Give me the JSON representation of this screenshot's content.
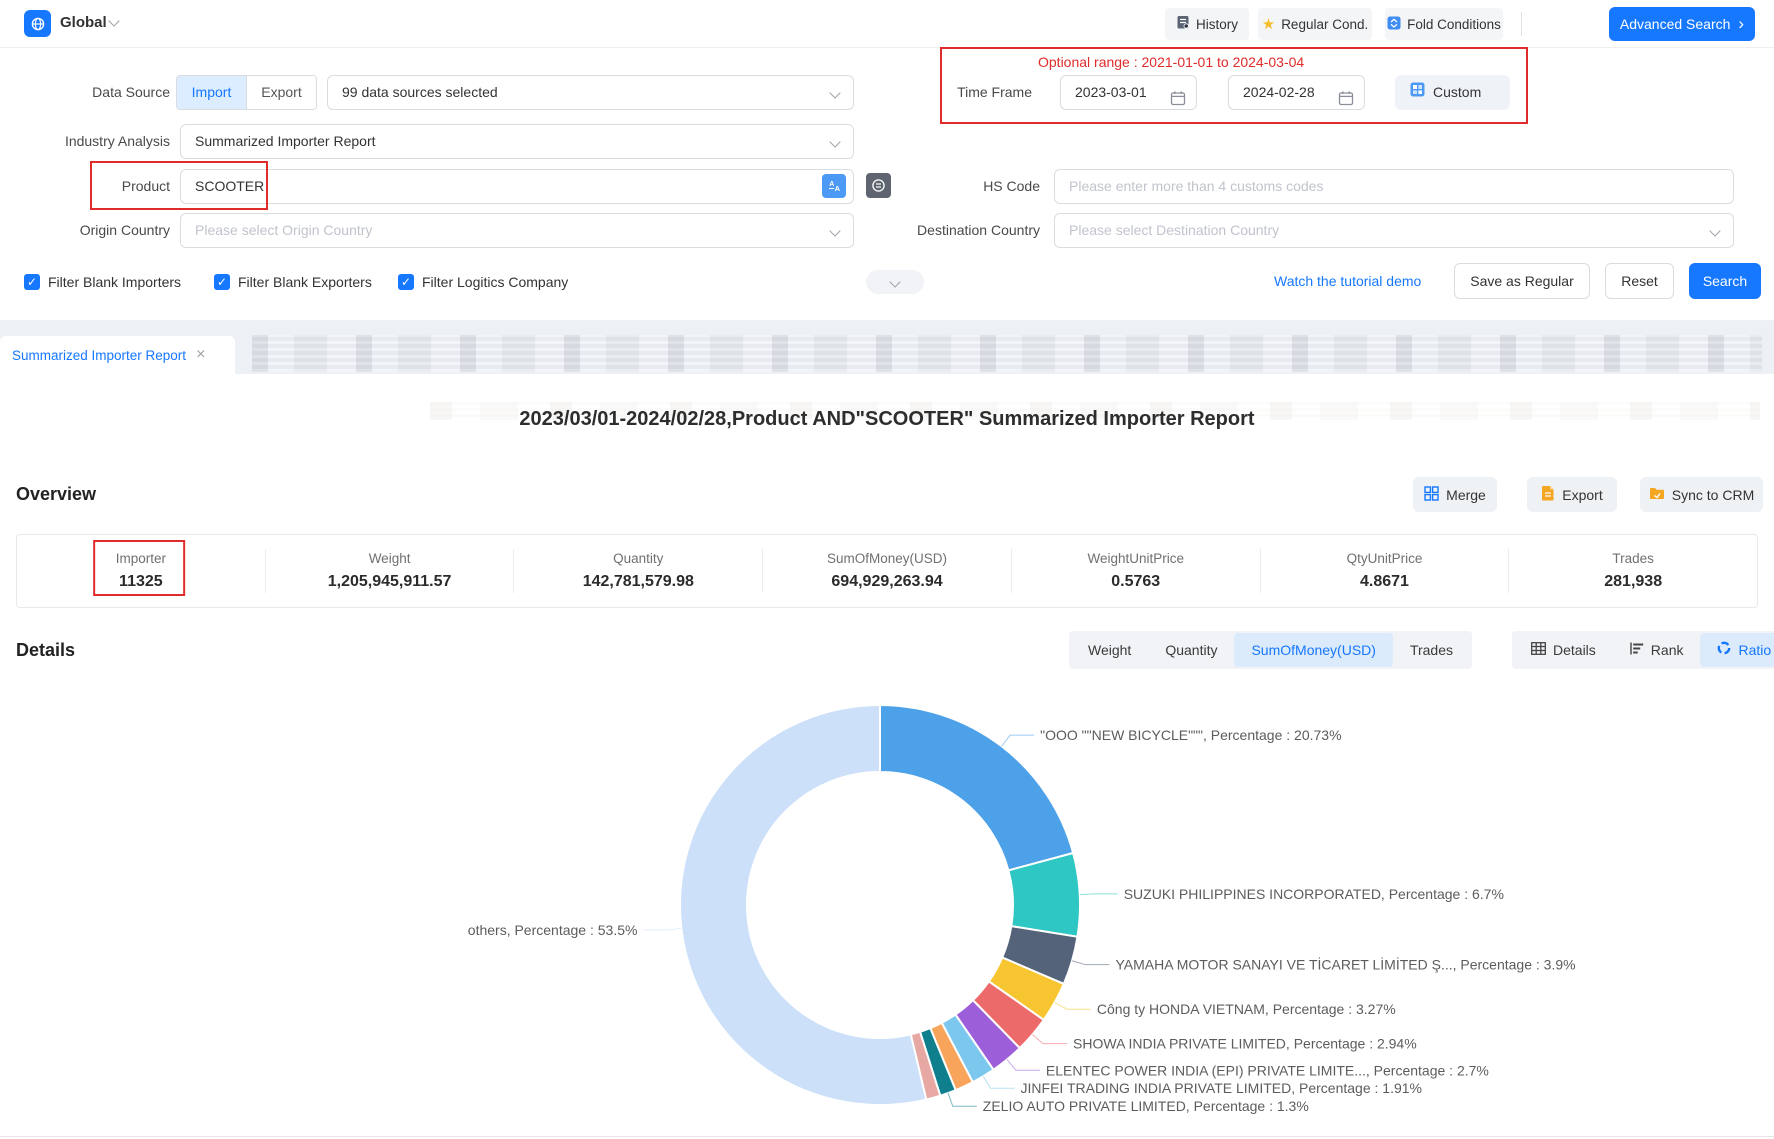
{
  "colors": {
    "accent": "#1677FF",
    "annotation_red": "#E02B2B",
    "star_yellow": "#F6BE2C",
    "doc_orange": "#F5A623"
  },
  "topbar": {
    "region_label": "Global",
    "history_label": "History",
    "regular_label": "Regular Cond.",
    "fold_label": "Fold Conditions",
    "advanced_label": "Advanced Search",
    "advanced_chevron": "›"
  },
  "form": {
    "data_source_label": "Data Source",
    "import_label": "Import",
    "export_label": "Export",
    "sources_value": "99 data sources selected",
    "optional_range": "Optional range : 2021-01-01 to 2024-03-04",
    "time_frame_label": "Time Frame",
    "date_from": "2023-03-01",
    "date_to": "2024-02-28",
    "custom_label": "Custom",
    "industry_label": "Industry Analysis",
    "industry_value": "Summarized Importer Report",
    "product_label": "Product",
    "product_value": "SCOOTER",
    "hs_label": "HS Code",
    "hs_placeholder": "Please enter more than 4 customs codes",
    "origin_label": "Origin Country",
    "origin_placeholder": "Please select Origin Country",
    "dest_label": "Destination Country",
    "dest_placeholder": "Please select Destination Country",
    "checkbox1": "Filter Blank Importers",
    "checkbox2": "Filter Blank Exporters",
    "checkbox3": "Filter Logitics Company",
    "check_glyph": "✓",
    "tutorial_link": "Watch the tutorial demo",
    "save_regular_label": "Save as Regular",
    "reset_label": "Reset",
    "search_label": "Search"
  },
  "tab": {
    "title": "Summarized Importer Report",
    "close_glyph": "×"
  },
  "report": {
    "title": "2023/03/01-2024/02/28,Product AND\"SCOOTER\" Summarized Importer Report",
    "overview_heading": "Overview",
    "merge_label": "Merge",
    "export_label": "Export",
    "sync_label": "Sync to CRM",
    "stats": [
      {
        "label": "Importer",
        "value": "11325"
      },
      {
        "label": "Weight",
        "value": "1,205,945,911.57"
      },
      {
        "label": "Quantity",
        "value": "142,781,579.98"
      },
      {
        "label": "SumOfMoney(USD)",
        "value": "694,929,263.94"
      },
      {
        "label": "WeightUnitPrice",
        "value": "0.5763"
      },
      {
        "label": "QtyUnitPrice",
        "value": "4.8671"
      },
      {
        "label": "Trades",
        "value": "281,938"
      }
    ],
    "details_heading": "Details",
    "metric_toggles": [
      "Weight",
      "Quantity",
      "SumOfMoney(USD)",
      "Trades"
    ],
    "metric_selected": "SumOfMoney(USD)",
    "view_toggles": [
      "Details",
      "Rank",
      "Ratio"
    ],
    "view_selected": "Ratio"
  },
  "chart_data": {
    "type": "pie",
    "subtype": "donut",
    "title": "Importer share of SumOfMoney(USD)",
    "legend_position": "none",
    "label_word": "Percentage",
    "slices": [
      {
        "name": "\"OOO \"\"NEW BICYCLE\"\"\"",
        "value": 20.73,
        "color": "#4DA1E8",
        "labeled": true
      },
      {
        "name": "SUZUKI PHILIPPINES INCORPORATED",
        "value": 6.7,
        "color": "#2EC7C3",
        "labeled": true
      },
      {
        "name": "YAMAHA MOTOR SANAYI VE TİCARET LİMİTED Ş...",
        "value": 3.9,
        "color": "#546379",
        "labeled": true
      },
      {
        "name": "Công ty HONDA VIETNAM",
        "value": 3.27,
        "color": "#F7C530",
        "labeled": true
      },
      {
        "name": "SHOWA INDIA PRIVATE LIMITED",
        "value": 2.94,
        "color": "#EC6A6A",
        "labeled": true
      },
      {
        "name": "ELENTEC POWER INDIA (EPI) PRIVATE LIMITE...",
        "value": 2.7,
        "color": "#9C5FD9",
        "labeled": true
      },
      {
        "name": "JINFEI TRADING INDIA PRIVATE LIMITED",
        "value": 1.91,
        "color": "#7CC7ED",
        "labeled": true
      },
      {
        "name": "",
        "value": 1.5,
        "color": "#F8A45B",
        "labeled": false
      },
      {
        "name": "ZELIO AUTO PRIVATE LIMITED",
        "value": 1.3,
        "color": "#0F7F8D",
        "labeled": true
      },
      {
        "name": "",
        "value": 1.15,
        "color": "#E7A7A3",
        "labeled": false
      },
      {
        "name": "others",
        "value": 53.5,
        "color": "#CCE0F9",
        "labeled": true
      }
    ]
  }
}
